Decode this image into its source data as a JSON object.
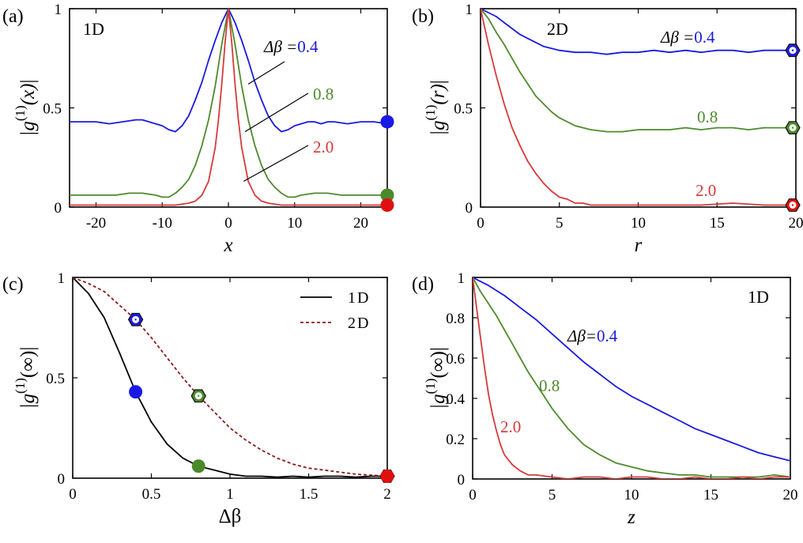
{
  "colors": {
    "blue": "#1a1ae0",
    "green": "#4e8a2c",
    "red": "#d63a3a",
    "black": "#000000",
    "darkred": "#8b1c1c",
    "marker_blue": "#1a1ae6",
    "marker_green": "#4a8a2a",
    "marker_red": "#e01010"
  },
  "chart_data": [
    {
      "id": "a",
      "type": "line",
      "panel_label": "(a)",
      "inset_label": "1D",
      "xlabel": "x",
      "ylabel": "|g(1)(x)|",
      "ylabel_parts": {
        "prefix": "|g",
        "sup": "(1)",
        "arg": "(x)",
        "suffix": "|"
      },
      "xlim": [
        -24,
        24
      ],
      "ylim": [
        0,
        1
      ],
      "xticks": [
        -20,
        -10,
        0,
        10,
        20
      ],
      "xtick_labels": [
        "-20",
        "-10",
        "0",
        "10",
        "20"
      ],
      "yticks": [
        0,
        0.5,
        1
      ],
      "ytick_labels": [
        "0",
        "0.5",
        "1"
      ],
      "series": [
        {
          "label": "Δβ=0.4",
          "color": "blue",
          "x": [
            -24,
            -22,
            -20,
            -18,
            -16,
            -14,
            -13,
            -12,
            -11,
            -10,
            -9,
            -8,
            -7,
            -6,
            -5,
            -4,
            -3,
            -2,
            -1,
            0,
            1,
            2,
            3,
            4,
            5,
            6,
            7,
            8,
            9,
            10,
            11,
            12,
            13,
            14,
            15,
            16,
            18,
            20,
            22,
            24
          ],
          "y": [
            0.43,
            0.43,
            0.43,
            0.42,
            0.43,
            0.44,
            0.44,
            0.43,
            0.42,
            0.41,
            0.39,
            0.38,
            0.41,
            0.46,
            0.54,
            0.63,
            0.74,
            0.84,
            0.93,
            1.0,
            0.93,
            0.84,
            0.74,
            0.63,
            0.54,
            0.46,
            0.41,
            0.38,
            0.39,
            0.41,
            0.42,
            0.43,
            0.43,
            0.42,
            0.43,
            0.43,
            0.42,
            0.43,
            0.43,
            0.42
          ]
        },
        {
          "label": "0.8",
          "color": "green",
          "x": [
            -24,
            -20,
            -17,
            -15,
            -13,
            -11,
            -10,
            -9,
            -8,
            -7,
            -6,
            -5,
            -4,
            -3,
            -2,
            -1,
            0,
            1,
            2,
            3,
            4,
            5,
            6,
            7,
            8,
            9,
            10,
            11,
            13,
            15,
            17,
            20,
            24
          ],
          "y": [
            0.06,
            0.06,
            0.06,
            0.07,
            0.07,
            0.06,
            0.05,
            0.05,
            0.07,
            0.1,
            0.14,
            0.21,
            0.31,
            0.44,
            0.61,
            0.82,
            1.0,
            0.82,
            0.61,
            0.44,
            0.31,
            0.21,
            0.14,
            0.1,
            0.07,
            0.05,
            0.05,
            0.06,
            0.07,
            0.07,
            0.06,
            0.06,
            0.06
          ]
        },
        {
          "label": "2.0",
          "color": "red",
          "x": [
            -24,
            -10,
            -8,
            -6,
            -5,
            -4,
            -3,
            -2,
            -1.5,
            -1,
            -0.5,
            0,
            0.5,
            1,
            1.5,
            2,
            3,
            4,
            5,
            6,
            8,
            10,
            24
          ],
          "y": [
            0.01,
            0.01,
            0.01,
            0.02,
            0.03,
            0.06,
            0.13,
            0.3,
            0.44,
            0.62,
            0.83,
            1.0,
            0.83,
            0.62,
            0.44,
            0.3,
            0.13,
            0.06,
            0.03,
            0.02,
            0.01,
            0.01,
            0.01
          ]
        }
      ],
      "annotations": [
        {
          "text": "Δβ =",
          "value": "0.4",
          "value_color": "blue",
          "line_to": [
            3,
            0.62
          ]
        },
        {
          "text": "",
          "value": "0.8",
          "value_color": "green",
          "line_to": [
            2.5,
            0.38
          ]
        },
        {
          "text": "",
          "value": "2.0",
          "value_color": "red",
          "line_to": [
            2.3,
            0.13
          ]
        }
      ],
      "markers": [
        {
          "x": 24,
          "y": 0.43,
          "shape": "circle",
          "color": "marker_blue"
        },
        {
          "x": 24,
          "y": 0.06,
          "shape": "circle",
          "color": "marker_green"
        },
        {
          "x": 24,
          "y": 0.01,
          "shape": "circle",
          "color": "marker_red"
        }
      ]
    },
    {
      "id": "b",
      "type": "line",
      "panel_label": "(b)",
      "inset_label": "2D",
      "xlabel": "r",
      "ylabel": "|g(1)(r)|",
      "ylabel_parts": {
        "prefix": "|g",
        "sup": "(1)",
        "arg": "(r)",
        "suffix": "|"
      },
      "xlim": [
        0,
        20
      ],
      "ylim": [
        0,
        1
      ],
      "xticks": [
        0,
        5,
        10,
        15,
        20
      ],
      "xtick_labels": [
        "0",
        "5",
        "10",
        "15",
        "20"
      ],
      "yticks": [
        0,
        0.5,
        1
      ],
      "ytick_labels": [
        "0",
        "0.5",
        "1"
      ],
      "series": [
        {
          "label": "Δβ=0.4",
          "color": "blue",
          "x": [
            0,
            0.5,
            1,
            1.5,
            2,
            2.5,
            3,
            3.5,
            4,
            5,
            6,
            7,
            8,
            9,
            10,
            11,
            12,
            13,
            14,
            15,
            16,
            17,
            18,
            19,
            20
          ],
          "y": [
            1.0,
            0.98,
            0.96,
            0.93,
            0.9,
            0.87,
            0.85,
            0.83,
            0.81,
            0.79,
            0.78,
            0.78,
            0.77,
            0.78,
            0.78,
            0.79,
            0.78,
            0.79,
            0.78,
            0.79,
            0.79,
            0.78,
            0.79,
            0.79,
            0.79
          ]
        },
        {
          "label": "0.8",
          "color": "green",
          "x": [
            0,
            0.5,
            1,
            1.5,
            2,
            2.5,
            3,
            3.5,
            4,
            4.5,
            5,
            5.5,
            6,
            7,
            8,
            9,
            10,
            11,
            12,
            13,
            14,
            15,
            16,
            17,
            18,
            19,
            20
          ],
          "y": [
            1.0,
            0.95,
            0.88,
            0.82,
            0.75,
            0.68,
            0.62,
            0.56,
            0.52,
            0.48,
            0.45,
            0.43,
            0.41,
            0.39,
            0.38,
            0.38,
            0.39,
            0.39,
            0.39,
            0.4,
            0.39,
            0.4,
            0.4,
            0.39,
            0.4,
            0.4,
            0.4
          ]
        },
        {
          "label": "2.0",
          "color": "red",
          "x": [
            0,
            0.5,
            1,
            1.5,
            2,
            2.5,
            3,
            3.5,
            4,
            4.5,
            5,
            5.5,
            6,
            6.5,
            7,
            8,
            9,
            10,
            12,
            14,
            16,
            18,
            20
          ],
          "y": [
            1.0,
            0.82,
            0.66,
            0.52,
            0.4,
            0.31,
            0.23,
            0.17,
            0.12,
            0.08,
            0.05,
            0.04,
            0.02,
            0.02,
            0.01,
            0.01,
            0.01,
            0.01,
            0.01,
            0.01,
            0.02,
            0.01,
            0.01
          ]
        }
      ],
      "annotations": [
        {
          "text": "Δβ =",
          "value": "0.4",
          "value_color": "blue"
        },
        {
          "text": "",
          "value": "0.8",
          "value_color": "green"
        },
        {
          "text": "",
          "value": "2.0",
          "value_color": "red"
        }
      ],
      "markers": [
        {
          "x": 19.8,
          "y": 0.79,
          "shape": "hexagon",
          "color": "marker_blue"
        },
        {
          "x": 19.8,
          "y": 0.4,
          "shape": "hexagon",
          "color": "marker_green"
        },
        {
          "x": 19.8,
          "y": 0.01,
          "shape": "hexagon",
          "color": "marker_red"
        }
      ]
    },
    {
      "id": "c",
      "type": "line",
      "panel_label": "(c)",
      "xlabel": "Δβ",
      "ylabel": "|g(1)(∞)|",
      "ylabel_parts": {
        "prefix": "|g",
        "sup": "(1)",
        "arg": "(∞)",
        "suffix": "|"
      },
      "xlim": [
        0,
        2
      ],
      "ylim": [
        0,
        1
      ],
      "xticks": [
        0,
        0.5,
        1,
        1.5,
        2
      ],
      "xtick_labels": [
        "0",
        "0.5",
        "1",
        "1.5",
        "2"
      ],
      "yticks": [
        0,
        0.5,
        1
      ],
      "ytick_labels": [
        "0",
        "0.5",
        "1"
      ],
      "legend": {
        "placement": "top-right"
      },
      "series": [
        {
          "name": "1D",
          "color": "black",
          "dash": false,
          "x": [
            0,
            0.1,
            0.2,
            0.3,
            0.4,
            0.5,
            0.6,
            0.7,
            0.8,
            0.9,
            1.0,
            1.1,
            1.2,
            1.3,
            1.4,
            1.5,
            1.6,
            1.7,
            1.8,
            1.9,
            2.0
          ],
          "y": [
            1.0,
            0.92,
            0.8,
            0.62,
            0.43,
            0.28,
            0.17,
            0.1,
            0.06,
            0.04,
            0.02,
            0.01,
            0.01,
            0.005,
            0.01,
            0.005,
            0.01,
            0.01,
            0.005,
            0.01,
            0.01
          ]
        },
        {
          "name": "2D",
          "color": "darkred",
          "dash": true,
          "x": [
            0,
            0.1,
            0.2,
            0.3,
            0.4,
            0.5,
            0.6,
            0.7,
            0.8,
            0.9,
            1.0,
            1.1,
            1.2,
            1.3,
            1.4,
            1.5,
            1.6,
            1.7,
            1.8,
            1.9,
            2.0
          ],
          "y": [
            1.0,
            0.97,
            0.93,
            0.86,
            0.79,
            0.7,
            0.6,
            0.5,
            0.41,
            0.33,
            0.25,
            0.19,
            0.14,
            0.1,
            0.07,
            0.05,
            0.04,
            0.03,
            0.02,
            0.015,
            0.01
          ]
        }
      ],
      "markers": [
        {
          "x": 0.4,
          "y": 0.79,
          "shape": "hexagon",
          "color": "marker_blue"
        },
        {
          "x": 0.4,
          "y": 0.43,
          "shape": "circle",
          "color": "marker_blue"
        },
        {
          "x": 0.8,
          "y": 0.41,
          "shape": "hexagon",
          "color": "marker_green"
        },
        {
          "x": 0.8,
          "y": 0.06,
          "shape": "circle",
          "color": "marker_green"
        },
        {
          "x": 2.0,
          "y": 0.01,
          "shape": "hexagon",
          "color": "marker_red"
        },
        {
          "x": 2.0,
          "y": 0.01,
          "shape": "circle",
          "color": "marker_red"
        }
      ]
    },
    {
      "id": "d",
      "type": "line",
      "panel_label": "(d)",
      "inset_label": "1D",
      "xlabel": "z",
      "ylabel": "|g(1)(∞)|",
      "ylabel_parts": {
        "prefix": "|g",
        "sup": "(1)",
        "arg": "(∞)",
        "suffix": "|"
      },
      "xlim": [
        0,
        20
      ],
      "ylim": [
        0,
        1
      ],
      "xticks": [
        0,
        5,
        10,
        15,
        20
      ],
      "xtick_labels": [
        "0",
        "5",
        "10",
        "15",
        "20"
      ],
      "yticks": [
        0,
        0.2,
        0.4,
        0.6,
        0.8,
        1
      ],
      "ytick_labels": [
        "0",
        "0.2",
        "0.4",
        "0.6",
        "0.8",
        "1"
      ],
      "series": [
        {
          "label": "Δβ=0.4",
          "color": "blue",
          "x": [
            0,
            1,
            2,
            3,
            4,
            5,
            6,
            7,
            8,
            9,
            10,
            11,
            12,
            13,
            14,
            15,
            16,
            17,
            18,
            19,
            20
          ],
          "y": [
            1.0,
            0.96,
            0.91,
            0.85,
            0.79,
            0.72,
            0.65,
            0.58,
            0.52,
            0.46,
            0.41,
            0.37,
            0.33,
            0.29,
            0.25,
            0.22,
            0.19,
            0.16,
            0.13,
            0.11,
            0.09
          ]
        },
        {
          "label": "0.8",
          "color": "green",
          "x": [
            0,
            0.5,
            1,
            1.5,
            2,
            2.5,
            3,
            3.5,
            4,
            4.5,
            5,
            6,
            7,
            8,
            9,
            10,
            11,
            12,
            13,
            14,
            15,
            16,
            17,
            18,
            19,
            20
          ],
          "y": [
            1.0,
            0.93,
            0.87,
            0.81,
            0.74,
            0.67,
            0.6,
            0.53,
            0.47,
            0.41,
            0.35,
            0.25,
            0.17,
            0.12,
            0.08,
            0.06,
            0.04,
            0.03,
            0.02,
            0.02,
            0.01,
            0.01,
            0.01,
            0.01,
            0.02,
            0.01
          ]
        },
        {
          "label": "2.0",
          "color": "red",
          "x": [
            0,
            0.25,
            0.5,
            0.75,
            1,
            1.25,
            1.5,
            1.75,
            2,
            2.5,
            3,
            3.5,
            4,
            5,
            6,
            7,
            8,
            9,
            10,
            11,
            12,
            13,
            14,
            15,
            16,
            17,
            18,
            19,
            20
          ],
          "y": [
            1.0,
            0.85,
            0.7,
            0.55,
            0.42,
            0.32,
            0.24,
            0.17,
            0.12,
            0.07,
            0.04,
            0.02,
            0.02,
            0.01,
            0.0,
            0.01,
            0.01,
            0.0,
            0.01,
            0.01,
            0.0,
            0.0,
            0.01,
            0.0,
            0.0,
            0.01,
            0.0,
            0.01,
            0.01
          ]
        }
      ],
      "annotations": [
        {
          "text": "Δβ=",
          "value": "0.4",
          "value_color": "blue"
        },
        {
          "text": "",
          "value": "0.8",
          "value_color": "green"
        },
        {
          "text": "",
          "value": "2.0",
          "value_color": "red"
        }
      ]
    }
  ]
}
